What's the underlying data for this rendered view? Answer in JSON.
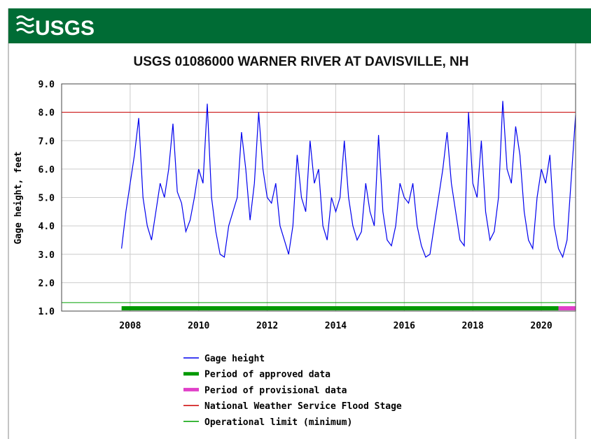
{
  "header": {
    "logo": "USGS"
  },
  "chart_data": {
    "type": "line",
    "title": "USGS 01086000 WARNER RIVER AT DAVISVILLE, NH",
    "ylabel": "Gage height, feet",
    "xlim": [
      2006,
      2021
    ],
    "ylim": [
      1,
      9
    ],
    "xticks": [
      2008,
      2010,
      2012,
      2014,
      2016,
      2018,
      2020
    ],
    "yticks": [
      {
        "value": 1,
        "label": "1.0"
      },
      {
        "value": 2,
        "label": "2.0"
      },
      {
        "value": 3,
        "label": "3.0"
      },
      {
        "value": 4,
        "label": "4.0"
      },
      {
        "value": 5,
        "label": "5.0"
      },
      {
        "value": 6,
        "label": "6.0"
      },
      {
        "value": 7,
        "label": "7.0"
      },
      {
        "value": 8,
        "label": "8.0"
      },
      {
        "value": 9,
        "label": "9.0"
      }
    ],
    "grid": true,
    "x": [
      2007.75,
      2007.875,
      2008,
      2008.125,
      2008.25,
      2008.375,
      2008.5,
      2008.625,
      2008.75,
      2008.875,
      2009,
      2009.125,
      2009.25,
      2009.375,
      2009.5,
      2009.625,
      2009.75,
      2009.875,
      2010,
      2010.125,
      2010.25,
      2010.375,
      2010.5,
      2010.625,
      2010.75,
      2010.875,
      2011,
      2011.125,
      2011.25,
      2011.375,
      2011.5,
      2011.625,
      2011.75,
      2011.875,
      2012,
      2012.125,
      2012.25,
      2012.375,
      2012.5,
      2012.625,
      2012.75,
      2012.875,
      2013,
      2013.125,
      2013.25,
      2013.375,
      2013.5,
      2013.625,
      2013.75,
      2013.875,
      2014,
      2014.125,
      2014.25,
      2014.375,
      2014.5,
      2014.625,
      2014.75,
      2014.875,
      2015,
      2015.125,
      2015.25,
      2015.375,
      2015.5,
      2015.625,
      2015.75,
      2015.875,
      2016,
      2016.125,
      2016.25,
      2016.375,
      2016.5,
      2016.625,
      2016.75,
      2016.875,
      2017,
      2017.125,
      2017.25,
      2017.375,
      2017.5,
      2017.625,
      2017.75,
      2017.875,
      2018,
      2018.125,
      2018.25,
      2018.375,
      2018.5,
      2018.625,
      2018.75,
      2018.875,
      2019,
      2019.125,
      2019.25,
      2019.375,
      2019.5,
      2019.625,
      2019.75,
      2019.875,
      2020,
      2020.125,
      2020.25,
      2020.375,
      2020.5,
      2020.625,
      2020.75,
      2020.875,
      2021
    ],
    "series": [
      {
        "name": "Gage height",
        "color": "#0000ee",
        "values": [
          3.2,
          4.5,
          5.5,
          6.5,
          7.8,
          5.0,
          4.0,
          3.5,
          4.5,
          5.5,
          5.0,
          6.0,
          7.6,
          5.2,
          4.8,
          3.8,
          4.2,
          5.0,
          6.0,
          5.5,
          8.3,
          5.0,
          3.8,
          3.0,
          2.9,
          4.0,
          4.5,
          5.0,
          7.3,
          6.0,
          4.2,
          5.5,
          8.0,
          6.0,
          5.0,
          4.8,
          5.5,
          4.0,
          3.5,
          3.0,
          4.0,
          6.5,
          5.0,
          4.5,
          7.0,
          5.5,
          6.0,
          4.0,
          3.5,
          5.0,
          4.5,
          5.0,
          7.0,
          5.0,
          4.0,
          3.5,
          3.8,
          5.5,
          4.5,
          4.0,
          7.2,
          4.5,
          3.5,
          3.3,
          4.0,
          5.5,
          5.0,
          4.8,
          5.5,
          4.0,
          3.3,
          2.9,
          3.0,
          4.0,
          5.0,
          6.0,
          7.3,
          5.5,
          4.5,
          3.5,
          3.3,
          8.0,
          5.5,
          5.0,
          7.0,
          4.5,
          3.5,
          3.8,
          5.0,
          8.4,
          6.0,
          5.5,
          7.5,
          6.5,
          4.5,
          3.5,
          3.2,
          5.0,
          6.0,
          5.5,
          6.5,
          4.0,
          3.2,
          2.9,
          3.5,
          5.7,
          7.9
        ]
      }
    ],
    "periods": [
      {
        "name": "Period of approved data",
        "color": "#009900",
        "start": 2007.75,
        "end": 2020.5
      },
      {
        "name": "Period of provisional data",
        "color": "#e040c8",
        "start": 2020.5,
        "end": 2021
      }
    ],
    "reference_lines": [
      {
        "name": "National Weather Service Flood Stage",
        "color": "#cc0000",
        "value": 8
      },
      {
        "name": "Operational limit (minimum)",
        "color": "#00a000",
        "value": 1.3
      }
    ]
  }
}
